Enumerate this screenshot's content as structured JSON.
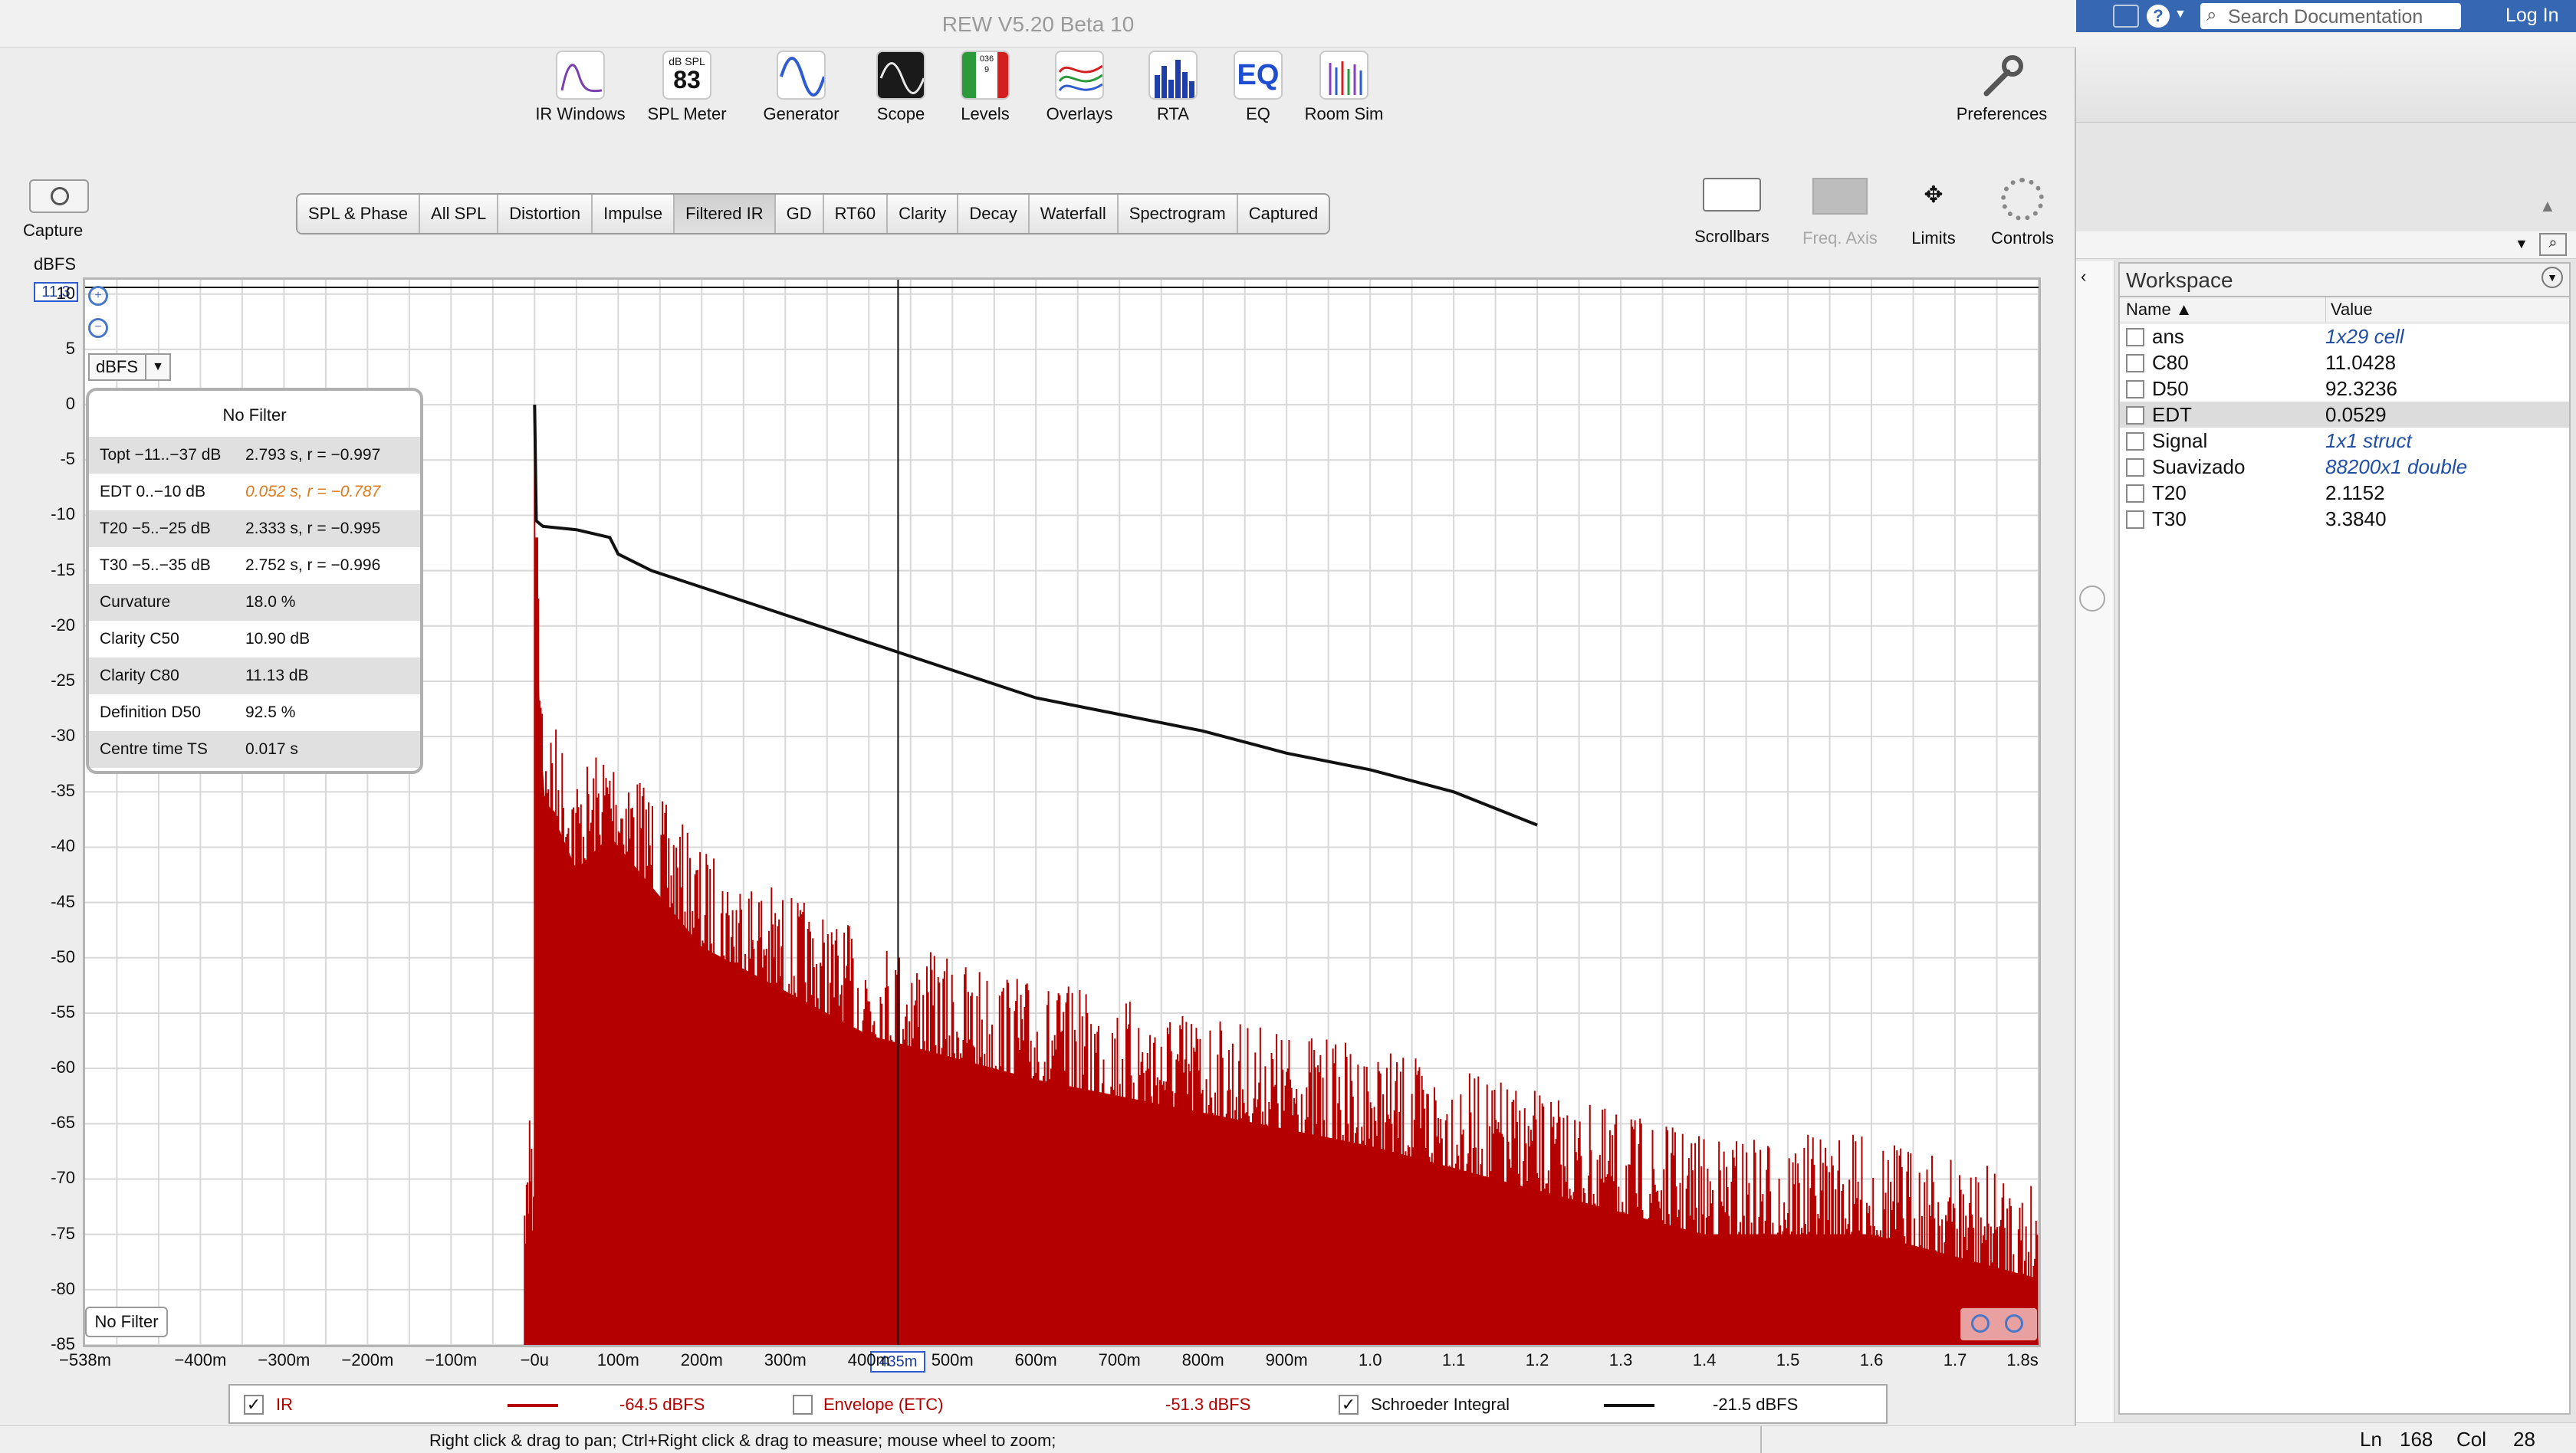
{
  "window_title": "REW V5.20 Beta 10",
  "toolbar": {
    "items": [
      "IR Windows",
      "SPL Meter",
      "Generator",
      "Scope",
      "Levels",
      "Overlays",
      "RTA",
      "EQ",
      "Room Sim"
    ],
    "spl_meter_unit": "dB SPL",
    "spl_meter_value": "83",
    "levels_digits": "0369",
    "preferences_label": "Preferences"
  },
  "capture_label": "Capture",
  "graph_tabs": [
    "SPL & Phase",
    "All SPL",
    "Distortion",
    "Impulse",
    "Filtered IR",
    "GD",
    "RT60",
    "Clarity",
    "Decay",
    "Waterfall",
    "Spectrogram",
    "Captured"
  ],
  "active_tab": "Filtered IR",
  "right_tools": {
    "scrollbars": "Scrollbars",
    "freq_axis": "Freq. Axis",
    "limits": "Limits",
    "controls": "Controls"
  },
  "plot": {
    "y_unit_label": "dBFS",
    "y_top_value": "11.3",
    "unit_selector": "dBFS",
    "filter_badge": "No Filter",
    "cursor_x_label": "435m"
  },
  "info_panel": {
    "header": "No Filter",
    "rows": [
      {
        "k": "Topt −11..−37 dB",
        "v": "2.793 s,  r = −0.997"
      },
      {
        "k": "EDT  0..−10 dB",
        "v": "0.052 s, r = −0.787"
      },
      {
        "k": "T20 −5..−25 dB",
        "v": "2.333 s,  r = −0.995"
      },
      {
        "k": "T30 −5..−35 dB",
        "v": "2.752 s,  r = −0.996"
      },
      {
        "k": "Curvature",
        "v": "18.0 %"
      },
      {
        "k": "Clarity C50",
        "v": "10.90 dB"
      },
      {
        "k": "Clarity C80",
        "v": "11.13 dB"
      },
      {
        "k": "Definition D50",
        "v": "92.5 %"
      },
      {
        "k": "Centre time TS",
        "v": "0.017 s"
      }
    ],
    "edt_color": "#e07a1a"
  },
  "chart_data": {
    "type": "line",
    "ylabel": "dBFS",
    "ylim": [
      -85,
      11.3
    ],
    "xlim": [
      -0.538,
      1.8
    ],
    "y_ticks": [
      "10",
      "5",
      "0",
      "-5",
      "-10",
      "-15",
      "-20",
      "-25",
      "-30",
      "-35",
      "-40",
      "-45",
      "-50",
      "-55",
      "-60",
      "-65",
      "-70",
      "-75",
      "-80",
      "-85"
    ],
    "x_ticks": [
      "−538m",
      "−400m",
      "−300m",
      "−200m",
      "−100m",
      "−0u",
      "100m",
      "200m",
      "300m",
      "400m",
      "500m",
      "600m",
      "700m",
      "800m",
      "900m",
      "1.0",
      "1.1",
      "1.2",
      "1.3",
      "1.4",
      "1.5",
      "1.6",
      "1.7",
      "1.8s"
    ],
    "series": [
      {
        "name": "IR",
        "color": "#b50000",
        "envelope": {
          "x": [
            0.0,
            0.002,
            0.01,
            0.05,
            0.09,
            0.2,
            0.4,
            0.6,
            0.8,
            1.0,
            1.2,
            1.4,
            1.6,
            1.8
          ],
          "y": [
            0,
            -10,
            -26,
            -33,
            -30,
            -40,
            -48,
            -52,
            -55,
            -58,
            -62,
            -66,
            -66,
            -70
          ]
        }
      },
      {
        "name": "Schroeder Integral",
        "color": "#111111",
        "x": [
          0.0,
          0.002,
          0.01,
          0.05,
          0.09,
          0.1,
          0.14,
          0.2,
          0.3,
          0.4,
          0.5,
          0.6,
          0.7,
          0.8,
          0.9,
          1.0,
          1.1,
          1.2
        ],
        "y": [
          0,
          -10.5,
          -11,
          -11.3,
          -12,
          -13.5,
          -15,
          -16.5,
          -19,
          -21.5,
          -24,
          -26.5,
          -28,
          -29.5,
          -31.5,
          -33,
          -35,
          -38
        ]
      }
    ],
    "cursor_x": 0.435
  },
  "legend": {
    "items": [
      {
        "label": "IR",
        "checked": true,
        "value": "-64.5 dBFS",
        "color": "#b50000"
      },
      {
        "label": "Envelope (ETC)",
        "checked": false,
        "value": "-51.3 dBFS",
        "color": "#b50000"
      },
      {
        "label": "Schroeder Integral",
        "checked": true,
        "value": "-21.5 dBFS",
        "color": "#111111"
      }
    ]
  },
  "status_text": "Right click & drag to pan; Ctrl+Right click & drag to measure; mouse wheel to zoom;",
  "matlab": {
    "search_placeholder": "Search Documentation",
    "login": "Log In",
    "workspace_title": "Workspace",
    "col_name": "Name ▲",
    "col_value": "Value",
    "vars": [
      {
        "name": "ans",
        "value": "1x29 cell",
        "italic": true
      },
      {
        "name": "C80",
        "value": "11.0428",
        "italic": false
      },
      {
        "name": "D50",
        "value": "92.3236",
        "italic": false
      },
      {
        "name": "EDT",
        "value": "0.0529",
        "italic": false,
        "selected": true
      },
      {
        "name": "Signal",
        "value": "1x1 struct",
        "italic": true
      },
      {
        "name": "Suavizado",
        "value": "88200x1 double",
        "italic": true
      },
      {
        "name": "T20",
        "value": "2.1152",
        "italic": false
      },
      {
        "name": "T30",
        "value": "3.3840",
        "italic": false
      }
    ],
    "status": {
      "ln_label": "Ln",
      "ln": "168",
      "col_label": "Col",
      "col": "28"
    }
  }
}
